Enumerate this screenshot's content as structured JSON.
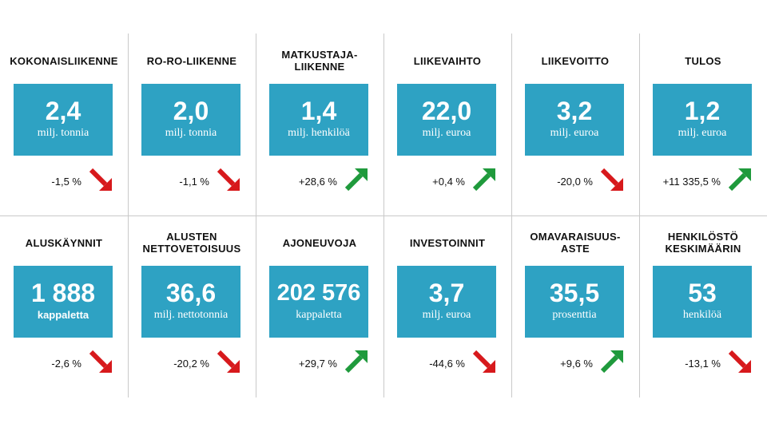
{
  "colors": {
    "box": "#2ea2c3",
    "up": "#1f9a3c",
    "down": "#d7191c",
    "divider": "#c9c9c9"
  },
  "rows": [
    [
      {
        "title": "KOKONAISLIIKENNE",
        "value": "2,4",
        "unit": "milj. tonnia",
        "change": "-1,5 %",
        "trend": "down"
      },
      {
        "title": "RO-RO-LIIKENNE",
        "value": "2,0",
        "unit": "milj. tonnia",
        "change": "-1,1 %",
        "trend": "down"
      },
      {
        "title": "MATKUSTAJA-\nLIIKENNE",
        "value": "1,4",
        "unit": "milj. henkilöä",
        "change": "+28,6 %",
        "trend": "up"
      },
      {
        "title": "LIIKEVAIHTO",
        "value": "22,0",
        "unit": "milj. euroa",
        "change": "+0,4 %",
        "trend": "up"
      },
      {
        "title": "LIIKEVOITTO",
        "value": "3,2",
        "unit": "milj. euroa",
        "change": "-20,0 %",
        "trend": "down"
      },
      {
        "title": "TULOS",
        "value": "1,2",
        "unit": "milj. euroa",
        "change": "+11 335,5 %",
        "trend": "up"
      }
    ],
    [
      {
        "title": "ALUSKÄYNNIT",
        "value": "1 888",
        "unit": "kappaletta",
        "change": "-2,6 %",
        "trend": "down",
        "unit_bold": true
      },
      {
        "title": "ALUSTEN\nNETTOVETOISUUS",
        "value": "36,6",
        "unit": "milj. nettotonnia",
        "change": "-20,2 %",
        "trend": "down"
      },
      {
        "title": "AJONEUVOJA",
        "value": "202 576",
        "unit": "kappaletta",
        "change": "+29,7 %",
        "trend": "up"
      },
      {
        "title": "INVESTOINNIT",
        "value": "3,7",
        "unit": "milj. euroa",
        "change": "-44,6 %",
        "trend": "down"
      },
      {
        "title": "OMAVARAISUUS-\nASTE",
        "value": "35,5",
        "unit": "prosenttia",
        "change": "+9,6 %",
        "trend": "up"
      },
      {
        "title": "HENKILÖSTÖ\nKESKIMÄÄRIN",
        "value": "53",
        "unit": "henkilöä",
        "change": "-13,1 %",
        "trend": "down"
      }
    ]
  ]
}
